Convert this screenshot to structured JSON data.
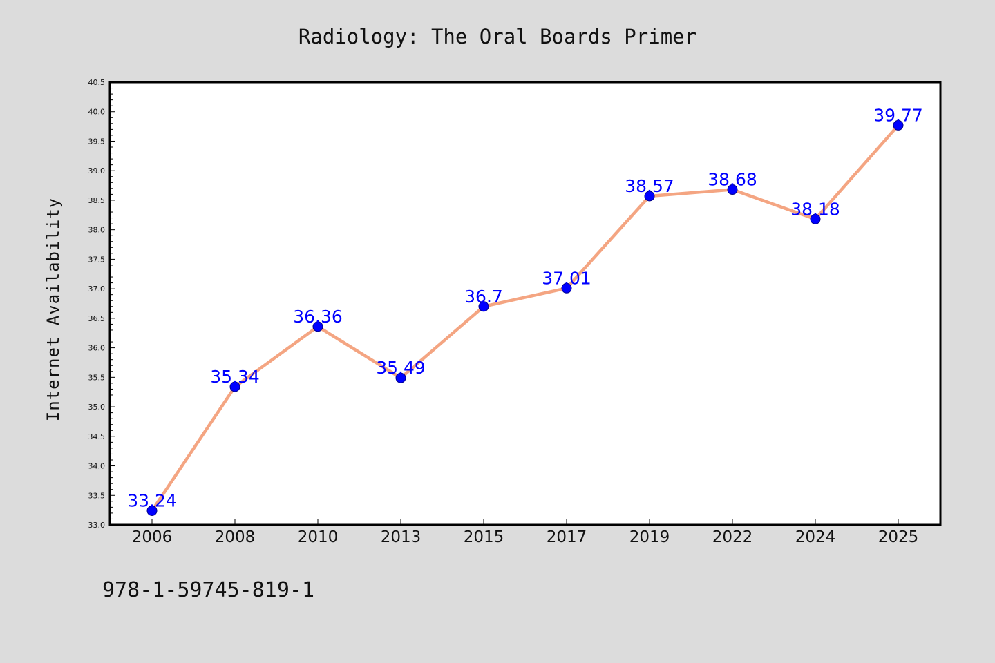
{
  "chart_data": {
    "type": "line",
    "title": "Radiology: The Oral Boards Primer",
    "xlabel": "",
    "ylabel": "Internet Availability",
    "categories": [
      "2006",
      "2008",
      "2010",
      "2013",
      "2015",
      "2017",
      "2019",
      "2022",
      "2024",
      "2025"
    ],
    "series": [
      {
        "values": [
          33.24,
          35.34,
          36.36,
          35.49,
          36.7,
          37.01,
          38.57,
          38.68,
          38.18,
          39.77
        ],
        "data_labels": [
          "33.24",
          "35.34",
          "36.36",
          "35.49",
          "36.7",
          "37.01",
          "38.57",
          "38.68",
          "38.18",
          "39.77"
        ]
      }
    ],
    "ylim": [
      33.0,
      40.5
    ],
    "yticks": [
      "33.0",
      "33.5",
      "34.0",
      "34.5",
      "35.0",
      "35.5",
      "36.0",
      "36.5",
      "37.0",
      "37.5",
      "38.0",
      "38.5",
      "39.0",
      "39.5",
      "40.0",
      "40.5"
    ],
    "grid": false,
    "legend": "none",
    "colors": {
      "line": "#f4a582",
      "marker": "#0000ff",
      "data_label": "#0000ff",
      "background": "#dcdcdc",
      "plot_background": "#ffffff"
    }
  },
  "footer": {
    "isbn": "978-1-59745-819-1"
  }
}
